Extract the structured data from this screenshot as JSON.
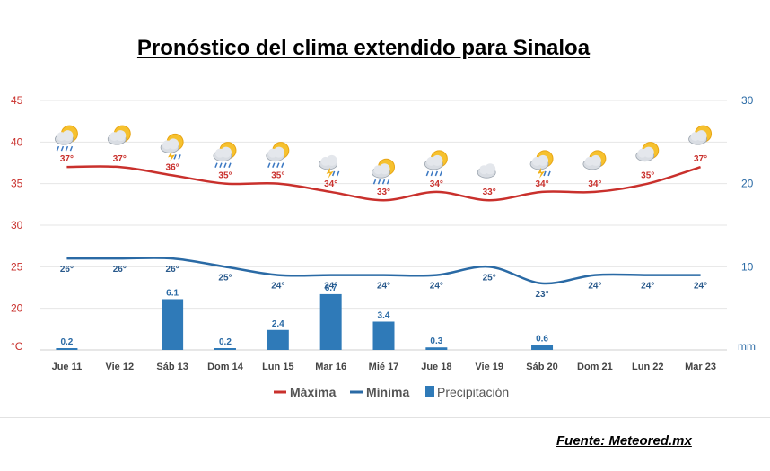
{
  "title": "Pronóstico del clima extendido para Sinaloa",
  "source": "Fuente: Meteored.mx",
  "chart_data": {
    "type": "line",
    "categories": [
      "Jue 11",
      "Vie 12",
      "Sáb 13",
      "Dom 14",
      "Lun 15",
      "Mar 16",
      "Mié 17",
      "Jue 18",
      "Vie 19",
      "Sáb 20",
      "Dom 21",
      "Lun 22",
      "Mar 23"
    ],
    "series": [
      {
        "name": "Máxima",
        "color": "#c9302c",
        "values": [
          37,
          37,
          36,
          35,
          35,
          34,
          33,
          34,
          33,
          34,
          34,
          35,
          37
        ],
        "labels": [
          "37°",
          "37°",
          "36°",
          "35°",
          "35°",
          "34°",
          "33°",
          "34°",
          "33°",
          "34°",
          "34°",
          "35°",
          "37°"
        ]
      },
      {
        "name": "Mínima",
        "color": "#2a6aa5",
        "values": [
          26,
          26,
          26,
          25,
          24,
          24,
          24,
          24,
          25,
          23,
          24,
          24,
          24
        ],
        "labels": [
          "26°",
          "26°",
          "26°",
          "25°",
          "24°",
          "24°",
          "24°",
          "24°",
          "25°",
          "23°",
          "24°",
          "24°",
          "24°"
        ]
      },
      {
        "name": "Precipitación",
        "color": "#2f7ab8",
        "type": "bar",
        "values": [
          0.2,
          0,
          6.1,
          0.2,
          2.4,
          6.7,
          3.4,
          0.3,
          0,
          0.6,
          0,
          0,
          0
        ],
        "labels": [
          "0.2",
          "",
          "6.1",
          "0.2",
          "2.4",
          "6.7",
          "3.4",
          "0.3",
          "",
          "0.6",
          "",
          "",
          ""
        ]
      }
    ],
    "y_left": {
      "label": "°C",
      "ticks": [
        "45",
        "40",
        "35",
        "30",
        "25",
        "20"
      ],
      "range": [
        15,
        45
      ]
    },
    "y_right": {
      "label": "mm",
      "ticks": [
        "30",
        "20",
        "10"
      ],
      "range": [
        0,
        30
      ]
    },
    "icons": [
      "sun-cloud-rain-icon",
      "sun-cloud-icon",
      "sun-cloud-storm-icon",
      "sun-cloud-rain-icon",
      "sun-cloud-rain-icon",
      "cloud-storm-icon",
      "sun-cloud-rain-icon",
      "sun-cloud-rain-icon",
      "cloud-icon",
      "sun-cloud-storm-icon",
      "sun-cloud-icon",
      "sun-cloud-icon",
      "sun-cloud-icon"
    ],
    "grid": true,
    "legend_position": "bottom"
  }
}
